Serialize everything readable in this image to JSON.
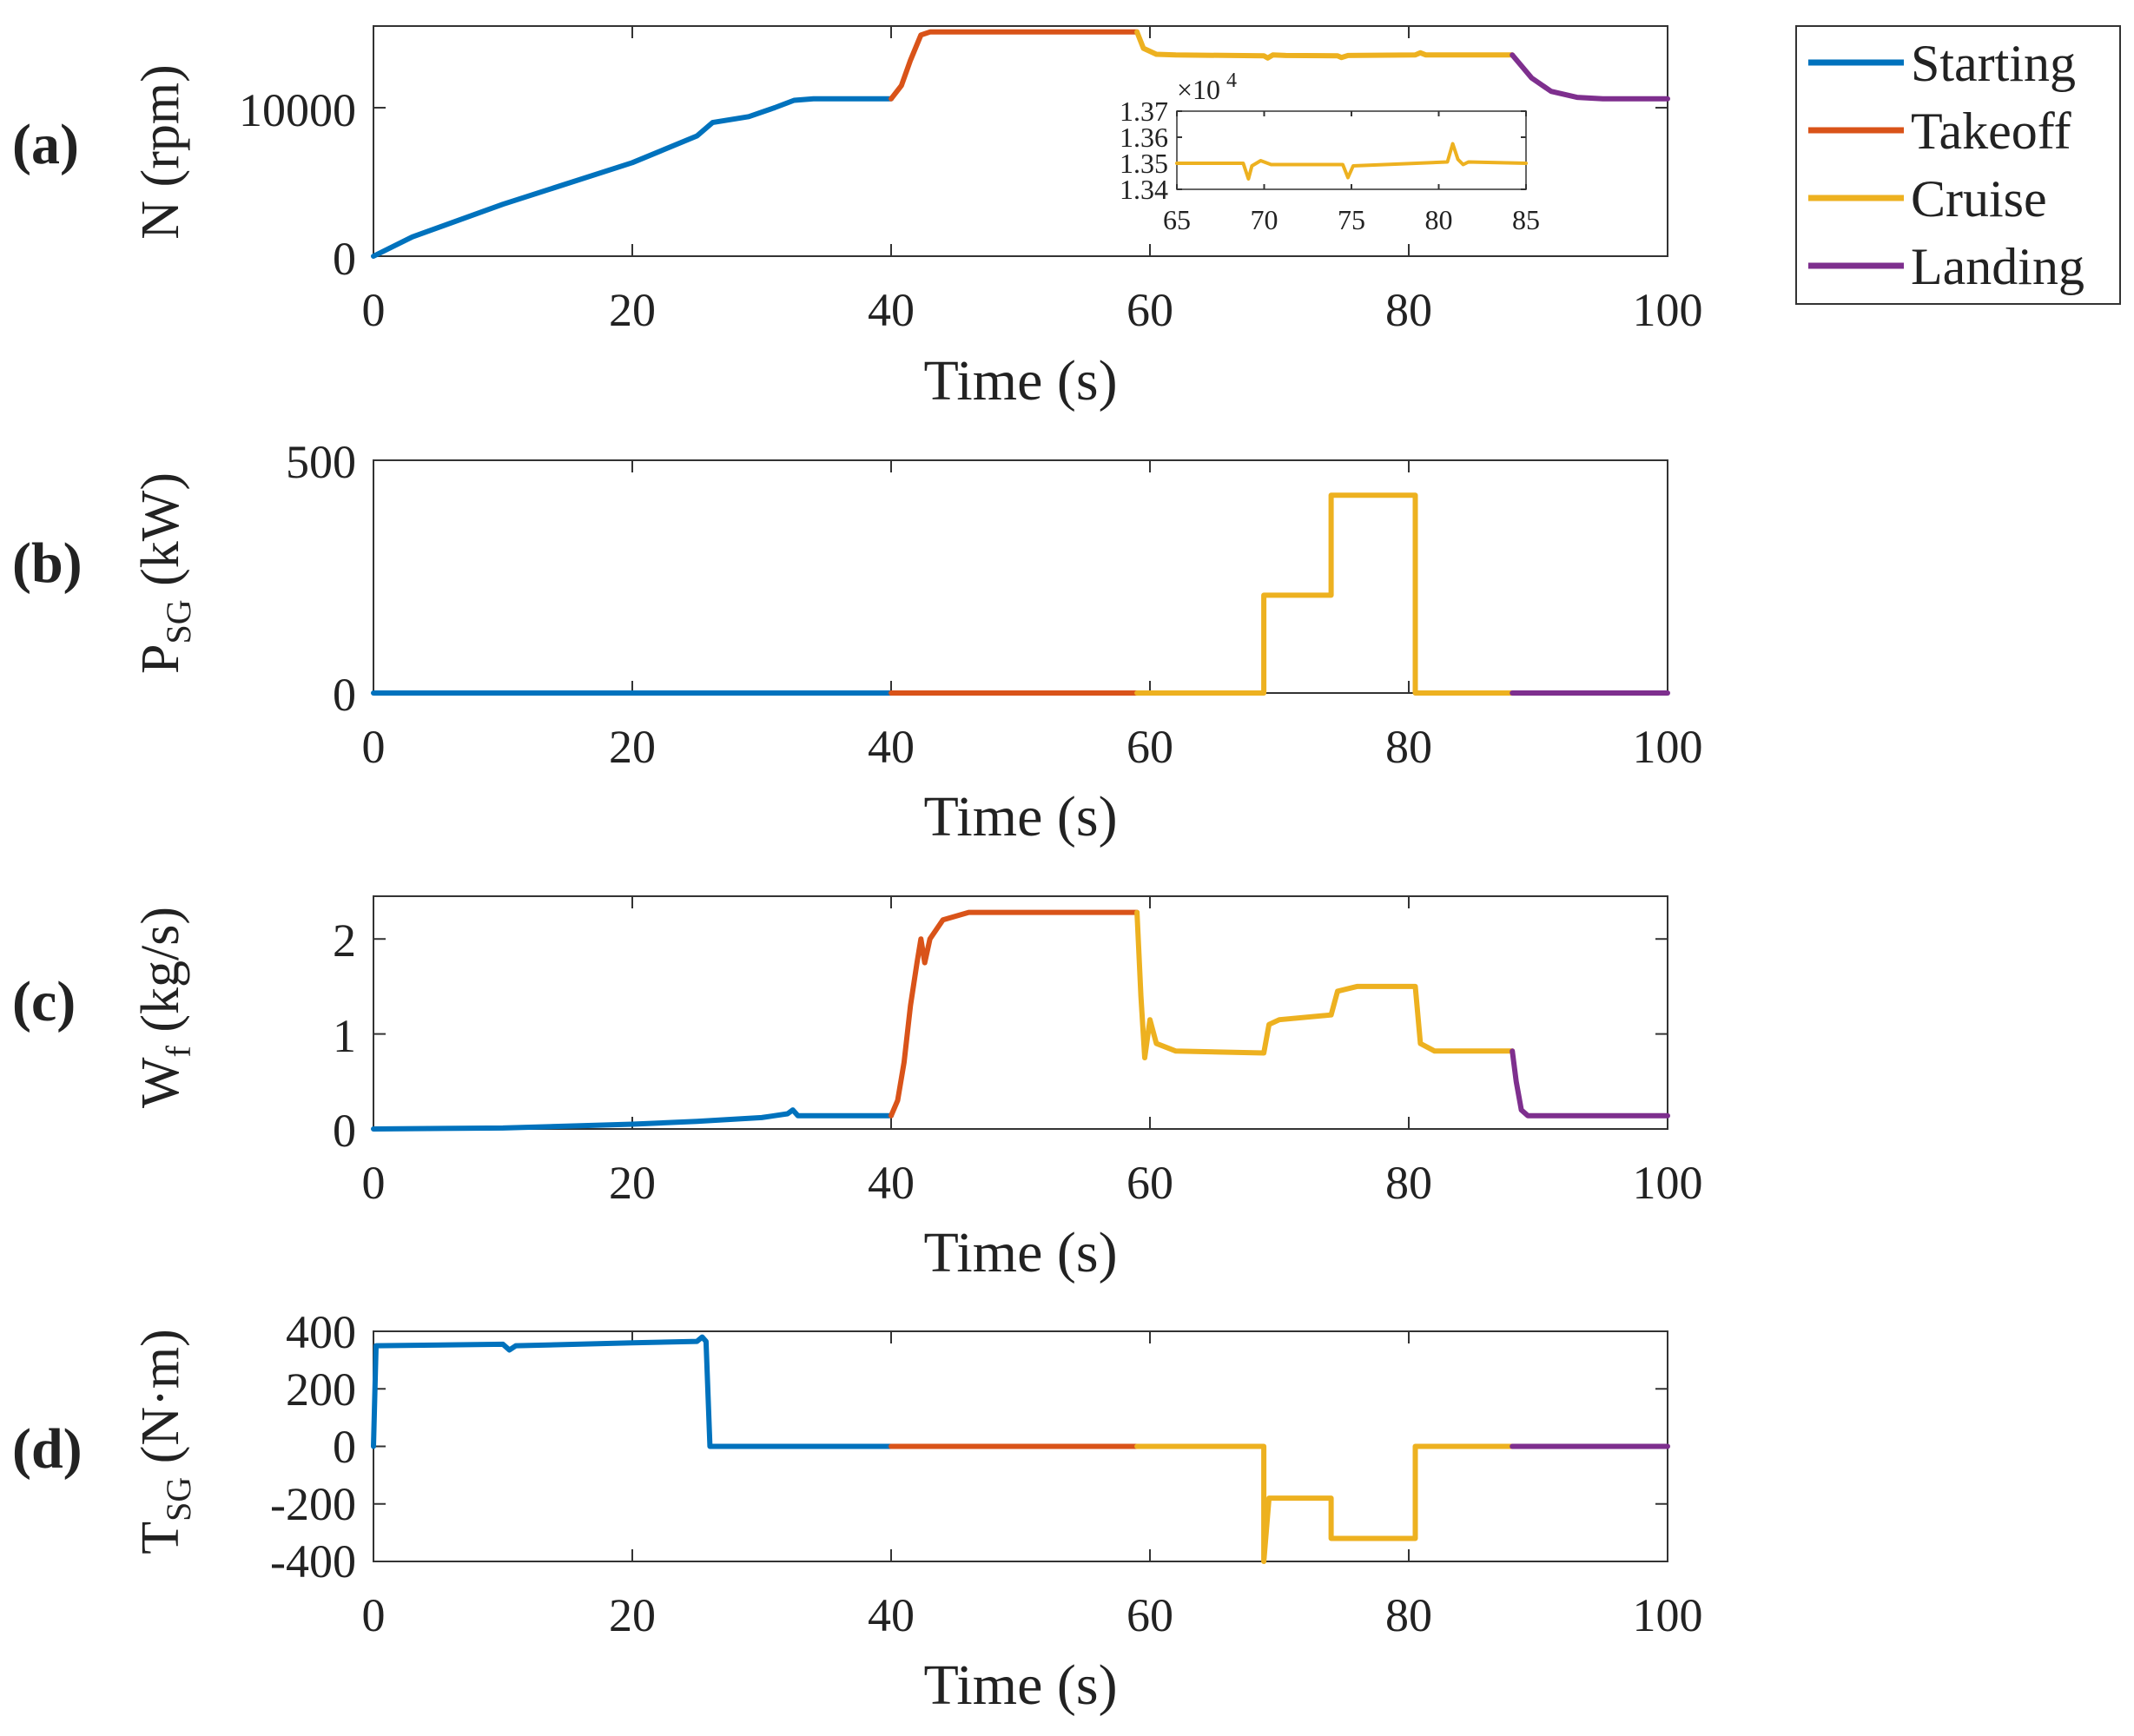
{
  "colors": {
    "starting": "#0072BD",
    "takeoff": "#D95319",
    "cruise": "#EDB120",
    "landing": "#7E2F8E",
    "axis": "#333333",
    "text": "#222222"
  },
  "chart_data": [
    {
      "type": "line",
      "panel_label": "(a)",
      "ylabel": "N (rpm)",
      "xlabel": "Time (s)",
      "xlim": [
        0,
        100
      ],
      "ylim": [
        0,
        15500
      ],
      "xticks": [
        "0",
        "20",
        "40",
        "60",
        "80",
        "100"
      ],
      "yticks": [
        {
          "v": 0,
          "label": "0"
        },
        {
          "v": 10000,
          "label": "10000"
        }
      ],
      "series": [
        {
          "name": "Starting",
          "points": [
            [
              0,
              0
            ],
            [
              3,
              1300
            ],
            [
              10,
              3500
            ],
            [
              20,
              6300
            ],
            [
              25,
              8100
            ],
            [
              26.2,
              9000
            ],
            [
              29,
              9400
            ],
            [
              31,
              10000
            ],
            [
              32.5,
              10500
            ],
            [
              34,
              10600
            ],
            [
              40,
              10600
            ]
          ]
        },
        {
          "name": "Takeoff",
          "points": [
            [
              40,
              10600
            ],
            [
              40.8,
              11500
            ],
            [
              41.5,
              13200
            ],
            [
              42.3,
              14900
            ],
            [
              43,
              15100
            ],
            [
              59,
              15100
            ]
          ]
        },
        {
          "name": "Cruise",
          "points": [
            [
              59,
              15100
            ],
            [
              59.5,
              14000
            ],
            [
              60.5,
              13600
            ],
            [
              62,
              13550
            ],
            [
              68.8,
              13500
            ],
            [
              69.1,
              13350
            ],
            [
              69.5,
              13550
            ],
            [
              70.5,
              13520
            ],
            [
              74.5,
              13500
            ],
            [
              74.8,
              13380
            ],
            [
              75.3,
              13520
            ],
            [
              80.5,
              13550
            ],
            [
              80.9,
              13700
            ],
            [
              81.3,
              13560
            ],
            [
              88,
              13550
            ]
          ]
        },
        {
          "name": "Landing",
          "points": [
            [
              88,
              13550
            ],
            [
              89.5,
              12000
            ],
            [
              91,
              11100
            ],
            [
              93,
              10700
            ],
            [
              95,
              10600
            ],
            [
              100,
              10600
            ]
          ]
        }
      ],
      "inset": {
        "xlim": [
          65,
          85
        ],
        "ylim": [
          1.34,
          1.37
        ],
        "exponent_label": "×10",
        "exponent_power": "4",
        "xticks": [
          "65",
          "70",
          "75",
          "80",
          "85"
        ],
        "yticks": [
          {
            "v": 1.37,
            "label": "1.37"
          },
          {
            "v": 1.36,
            "label": "1.36"
          },
          {
            "v": 1.35,
            "label": "1.35"
          },
          {
            "v": 1.34,
            "label": "1.34"
          }
        ],
        "series": [
          {
            "name": "Cruise",
            "points": [
              [
                65,
                1.35
              ],
              [
                68.8,
                1.35
              ],
              [
                69.1,
                1.344
              ],
              [
                69.3,
                1.349
              ],
              [
                69.8,
                1.351
              ],
              [
                70.4,
                1.3495
              ],
              [
                74.5,
                1.3495
              ],
              [
                74.8,
                1.3445
              ],
              [
                75.1,
                1.349
              ],
              [
                80.5,
                1.3505
              ],
              [
                80.8,
                1.3575
              ],
              [
                81.1,
                1.3515
              ],
              [
                81.4,
                1.3495
              ],
              [
                81.7,
                1.3505
              ],
              [
                85,
                1.35
              ]
            ]
          }
        ]
      }
    },
    {
      "type": "line",
      "panel_label": "(b)",
      "ylabel_main": "P",
      "ylabel_sub": "SG",
      "ylabel_unit": " (kW)",
      "xlabel": "Time (s)",
      "xlim": [
        0,
        100
      ],
      "ylim": [
        0,
        500
      ],
      "xticks": [
        "0",
        "20",
        "40",
        "60",
        "80",
        "100"
      ],
      "yticks": [
        {
          "v": 0,
          "label": "0"
        },
        {
          "v": 500,
          "label": "500"
        }
      ],
      "series": [
        {
          "name": "Starting",
          "points": [
            [
              0,
              0
            ],
            [
              40,
              0
            ]
          ]
        },
        {
          "name": "Takeoff",
          "points": [
            [
              40,
              0
            ],
            [
              59,
              0
            ]
          ]
        },
        {
          "name": "Cruise",
          "points": [
            [
              59,
              0
            ],
            [
              68.8,
              0
            ],
            [
              68.8,
              210
            ],
            [
              74,
              210
            ],
            [
              74,
              425
            ],
            [
              80.5,
              425
            ],
            [
              80.5,
              0
            ],
            [
              88,
              0
            ]
          ]
        },
        {
          "name": "Landing",
          "points": [
            [
              88,
              0
            ],
            [
              100,
              0
            ]
          ]
        }
      ]
    },
    {
      "type": "line",
      "panel_label": "(c)",
      "ylabel_main": "W",
      "ylabel_sub": "f",
      "ylabel_unit": " (kg/s)",
      "xlabel": "Time (s)",
      "xlim": [
        0,
        100
      ],
      "ylim": [
        0,
        2.45
      ],
      "xticks": [
        "0",
        "20",
        "40",
        "60",
        "80",
        "100"
      ],
      "yticks": [
        {
          "v": 0,
          "label": "0"
        },
        {
          "v": 1,
          "label": "1"
        },
        {
          "v": 2,
          "label": "2"
        }
      ],
      "series": [
        {
          "name": "Starting",
          "points": [
            [
              0,
              0
            ],
            [
              10,
              0.01
            ],
            [
              20,
              0.05
            ],
            [
              25,
              0.08
            ],
            [
              30,
              0.12
            ],
            [
              32,
              0.16
            ],
            [
              32.4,
              0.2
            ],
            [
              32.8,
              0.14
            ],
            [
              40,
              0.14
            ]
          ]
        },
        {
          "name": "Takeoff",
          "points": [
            [
              40,
              0.14
            ],
            [
              40.5,
              0.3
            ],
            [
              41,
              0.7
            ],
            [
              41.5,
              1.3
            ],
            [
              42,
              1.75
            ],
            [
              42.3,
              2.0
            ],
            [
              42.6,
              1.75
            ],
            [
              43,
              2.0
            ],
            [
              44,
              2.2
            ],
            [
              46,
              2.28
            ],
            [
              59,
              2.28
            ]
          ]
        },
        {
          "name": "Cruise",
          "points": [
            [
              59,
              2.28
            ],
            [
              59.3,
              1.4
            ],
            [
              59.6,
              0.75
            ],
            [
              60,
              1.15
            ],
            [
              60.5,
              0.9
            ],
            [
              62,
              0.82
            ],
            [
              68.8,
              0.8
            ],
            [
              69.2,
              1.1
            ],
            [
              70,
              1.15
            ],
            [
              74,
              1.2
            ],
            [
              74.5,
              1.45
            ],
            [
              76,
              1.5
            ],
            [
              80.5,
              1.5
            ],
            [
              80.9,
              0.9
            ],
            [
              82,
              0.82
            ],
            [
              88,
              0.82
            ]
          ]
        },
        {
          "name": "Landing",
          "points": [
            [
              88,
              0.82
            ],
            [
              88.3,
              0.5
            ],
            [
              88.7,
              0.2
            ],
            [
              89.2,
              0.14
            ],
            [
              100,
              0.14
            ]
          ]
        }
      ]
    },
    {
      "type": "line",
      "panel_label": "(d)",
      "ylabel_main": "T",
      "ylabel_sub": "SG",
      "ylabel_unit": " (N·m)",
      "xlabel": "Time (s)",
      "xlim": [
        0,
        100
      ],
      "ylim": [
        -400,
        400
      ],
      "xticks": [
        "0",
        "20",
        "40",
        "60",
        "80",
        "100"
      ],
      "yticks": [
        {
          "v": 400,
          "label": "400"
        },
        {
          "v": 200,
          "label": "200"
        },
        {
          "v": 0,
          "label": "0"
        },
        {
          "v": -200,
          "label": "-200"
        },
        {
          "v": -400,
          "label": "-400"
        }
      ],
      "series": [
        {
          "name": "Starting",
          "points": [
            [
              0,
              0
            ],
            [
              0.2,
              350
            ],
            [
              10,
              355
            ],
            [
              10.5,
              335
            ],
            [
              11,
              350
            ],
            [
              20,
              360
            ],
            [
              25,
              365
            ],
            [
              25.4,
              380
            ],
            [
              25.7,
              365
            ],
            [
              26,
              0
            ],
            [
              40,
              0
            ]
          ]
        },
        {
          "name": "Takeoff",
          "points": [
            [
              40,
              0
            ],
            [
              59,
              0
            ]
          ]
        },
        {
          "name": "Cruise",
          "points": [
            [
              59,
              0
            ],
            [
              68.8,
              0
            ],
            [
              68.8,
              -400
            ],
            [
              69.2,
              -180
            ],
            [
              74,
              -180
            ],
            [
              74,
              -320
            ],
            [
              80.5,
              -320
            ],
            [
              80.5,
              0
            ],
            [
              88,
              0
            ]
          ]
        },
        {
          "name": "Landing",
          "points": [
            [
              88,
              0
            ],
            [
              100,
              0
            ]
          ]
        }
      ]
    }
  ],
  "legend": {
    "entries": [
      {
        "name": "Starting",
        "color_key": "starting"
      },
      {
        "name": "Takeoff",
        "color_key": "takeoff"
      },
      {
        "name": "Cruise",
        "color_key": "cruise"
      },
      {
        "name": "Landing",
        "color_key": "landing"
      }
    ]
  }
}
